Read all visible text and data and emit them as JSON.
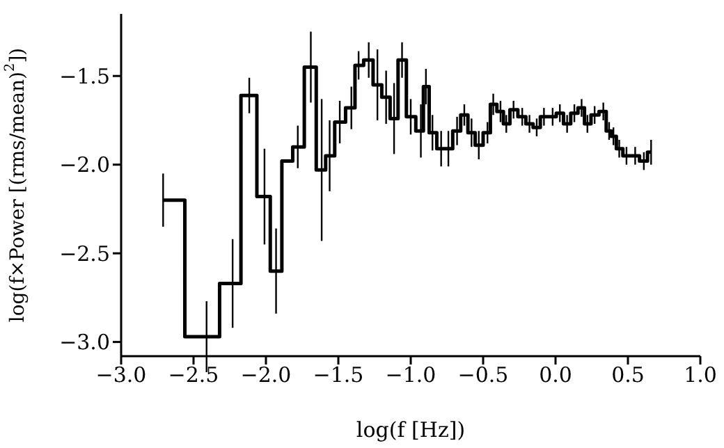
{
  "chart_data": {
    "type": "step",
    "xlabel": "log(f [Hz])",
    "ylabel": "log(f×Power [(rms/mean)$^{2}$])",
    "color": "#000000",
    "x": [
      -2.71,
      -2.41,
      -2.23,
      -2.115,
      -2.01,
      -1.93,
      -1.85,
      -1.78,
      -1.69,
      -1.615,
      -1.56,
      -1.49,
      -1.41,
      -1.36,
      -1.29,
      -1.23,
      -1.17,
      -1.115,
      -1.06,
      -1.0,
      -0.93,
      -0.895,
      -0.85,
      -0.79,
      -0.74,
      -0.68,
      -0.63,
      -0.58,
      -0.53,
      -0.47,
      -0.43,
      -0.38,
      -0.34,
      -0.29,
      -0.23,
      -0.18,
      -0.13,
      -0.08,
      -0.02,
      0.03,
      0.08,
      0.13,
      0.18,
      0.22,
      0.27,
      0.33,
      0.37,
      0.4,
      0.44,
      0.49,
      0.55,
      0.61,
      0.66
    ],
    "values": [
      -2.2,
      -2.97,
      -2.67,
      -1.61,
      -2.18,
      -2.6,
      -1.98,
      -1.9,
      -1.45,
      -2.03,
      -1.95,
      -1.76,
      -1.68,
      -1.44,
      -1.41,
      -1.55,
      -1.62,
      -1.74,
      -1.41,
      -1.73,
      -1.81,
      -1.56,
      -1.82,
      -1.91,
      -1.91,
      -1.81,
      -1.72,
      -1.82,
      -1.89,
      -1.82,
      -1.66,
      -1.7,
      -1.77,
      -1.69,
      -1.73,
      -1.77,
      -1.79,
      -1.73,
      -1.73,
      -1.71,
      -1.77,
      -1.71,
      -1.68,
      -1.77,
      -1.72,
      -1.7,
      -1.81,
      -1.84,
      -1.91,
      -1.95,
      -1.95,
      -1.98,
      -1.93
    ],
    "errors": [
      0.15,
      0.2,
      0.25,
      0.1,
      0.27,
      0.24,
      null,
      0.12,
      0.2,
      0.4,
      0.2,
      0.12,
      0.12,
      0.08,
      0.1,
      0.2,
      0.15,
      0.2,
      0.1,
      0.1,
      0.15,
      0.1,
      0.1,
      0.1,
      0.1,
      0.08,
      0.06,
      0.08,
      0.08,
      0.06,
      0.06,
      0.06,
      0.05,
      0.05,
      0.05,
      0.05,
      0.05,
      0.05,
      0.05,
      0.05,
      0.05,
      0.05,
      0.05,
      0.05,
      0.05,
      0.05,
      0.05,
      0.05,
      0.05,
      0.05,
      0.05,
      0.05,
      0.07
    ],
    "xlim": [
      -3.0,
      1.0
    ],
    "xticks": [
      {
        "value": -3.0,
        "label": "−3.0"
      },
      {
        "value": -2.5,
        "label": "−2.5"
      },
      {
        "value": -2.0,
        "label": "−2.0"
      },
      {
        "value": -1.5,
        "label": "−1.5"
      },
      {
        "value": -1.0,
        "label": "−1.0"
      },
      {
        "value": -0.5,
        "label": "−0.5"
      },
      {
        "value": 0.0,
        "label": "0.0"
      },
      {
        "value": 0.5,
        "label": "0.5"
      },
      {
        "value": 1.0,
        "label": "1.0"
      }
    ],
    "ylim": [
      -3.08,
      -1.15
    ],
    "yticks": [
      {
        "value": -3.0,
        "label": "−3.0"
      },
      {
        "value": -2.5,
        "label": "−2.5"
      },
      {
        "value": -2.0,
        "label": "−2.0"
      },
      {
        "value": -1.5,
        "label": "−1.5"
      }
    ],
    "grid": false,
    "legend": false,
    "marker": "none",
    "line_style": "solid"
  }
}
